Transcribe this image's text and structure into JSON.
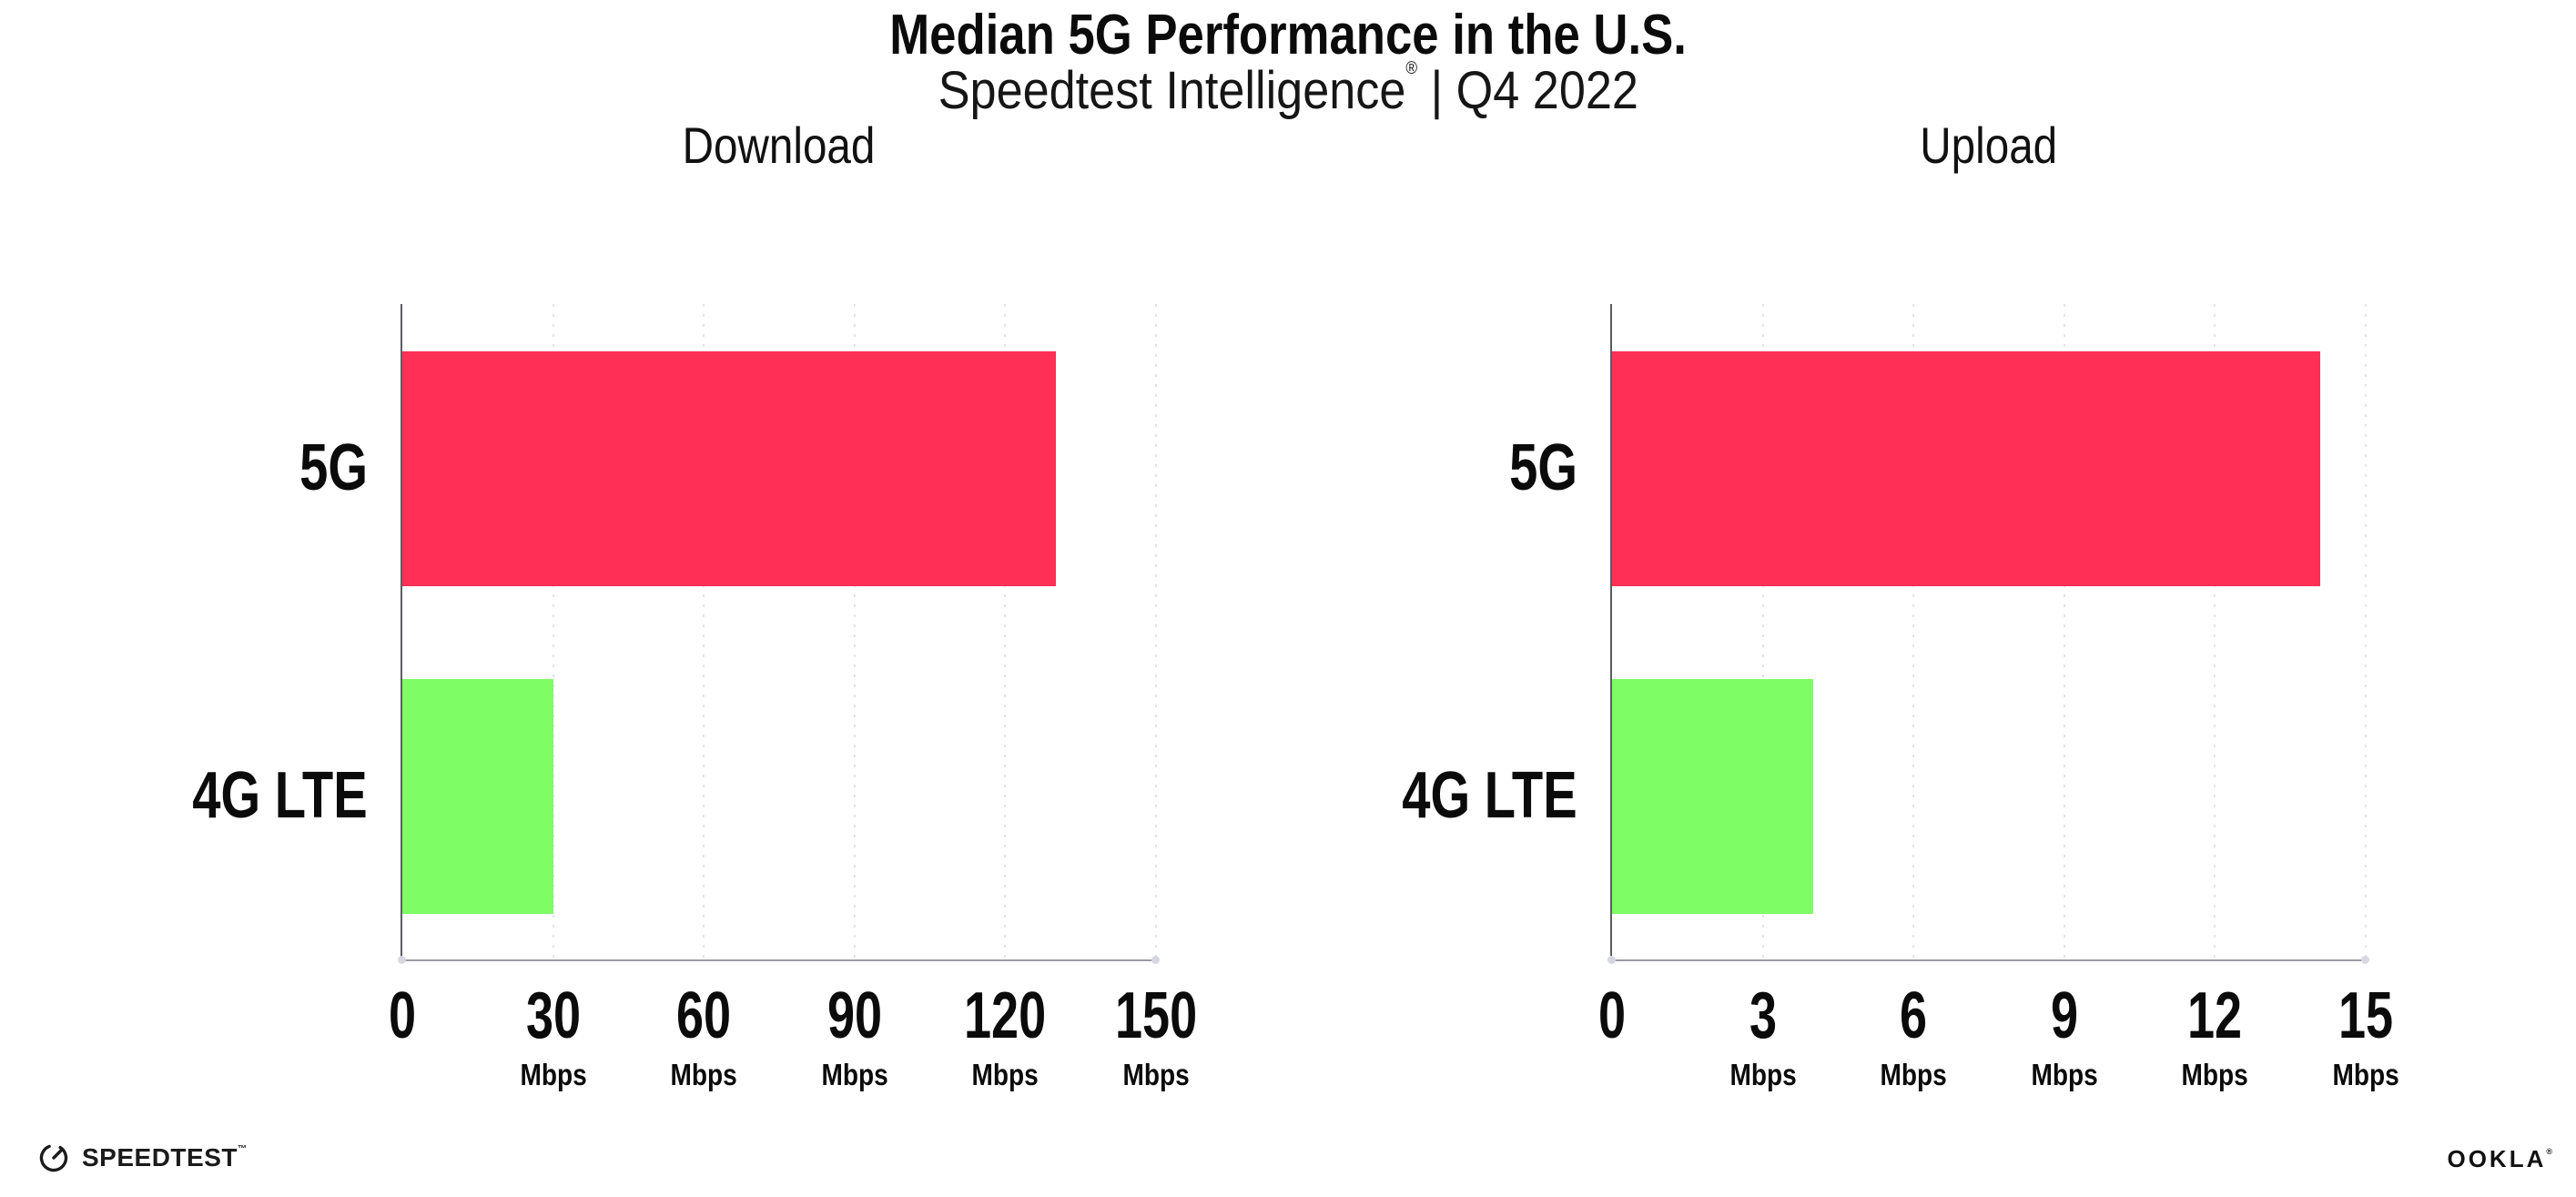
{
  "header": {
    "title": "Median 5G Performance in the U.S.",
    "subtitle_brand": "Speedtest Intelligence",
    "subtitle_reg": "®",
    "subtitle_rest": " | Q4 2022"
  },
  "colors": {
    "bar_5g": "#FF2F55",
    "bar_4g_lte": "#7EFE64",
    "gridline": "#E3E3EE",
    "x_axis": "#9B9BA1",
    "y_axis": "#5C5C62",
    "text": "#0B0B0B",
    "background": "#FFFFFF"
  },
  "chart_data": [
    {
      "type": "bar",
      "orientation": "horizontal",
      "title": "Download",
      "categories": [
        "5G",
        "4G LTE"
      ],
      "values": [
        130,
        30
      ],
      "unit": "Mbps",
      "xlabel": "",
      "ylabel": "",
      "xlim": [
        0,
        150
      ],
      "xticks": [
        0,
        30,
        60,
        90,
        120,
        150
      ],
      "bar_colors": [
        "#FF2F55",
        "#7EFE64"
      ],
      "grid": "vertical-dotted",
      "legend": "none"
    },
    {
      "type": "bar",
      "orientation": "horizontal",
      "title": "Upload",
      "categories": [
        "5G",
        "4G LTE"
      ],
      "values": [
        14.1,
        4
      ],
      "unit": "Mbps",
      "xlabel": "",
      "ylabel": "",
      "xlim": [
        0,
        15
      ],
      "xticks": [
        0,
        3,
        6,
        9,
        12,
        15
      ],
      "bar_colors": [
        "#FF2F55",
        "#7EFE64"
      ],
      "grid": "vertical-dotted",
      "legend": "none"
    }
  ],
  "footer": {
    "speedtest_logo_text": "SPEEDTEST",
    "speedtest_mark": "™",
    "ookla_logo_text": "OOKLA",
    "ookla_mark": "®"
  }
}
